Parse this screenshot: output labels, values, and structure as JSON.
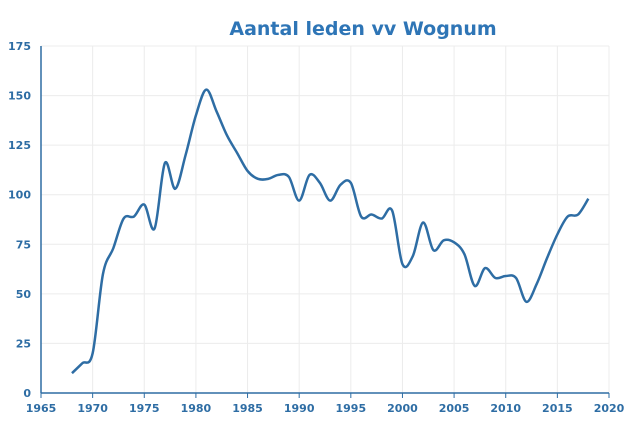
{
  "chart_data": {
    "type": "line",
    "title": "Aantal leden vv Wognum",
    "xlabel": "",
    "ylabel": "",
    "xlim": [
      1965,
      2020
    ],
    "ylim": [
      0,
      175
    ],
    "xticks": [
      1965,
      1970,
      1975,
      1980,
      1985,
      1990,
      1995,
      2000,
      2005,
      2010,
      2015,
      2020
    ],
    "yticks": [
      0,
      25,
      50,
      75,
      100,
      125,
      150,
      175
    ],
    "grid": true,
    "color": "#2e6da4",
    "series": [
      {
        "name": "Aantal leden",
        "x": [
          1968,
          1969,
          1970,
          1971,
          1972,
          1973,
          1974,
          1975,
          1976,
          1977,
          1978,
          1979,
          1980,
          1981,
          1982,
          1983,
          1984,
          1985,
          1986,
          1987,
          1988,
          1989,
          1990,
          1991,
          1992,
          1993,
          1994,
          1995,
          1996,
          1997,
          1998,
          1999,
          2000,
          2001,
          2002,
          2003,
          2004,
          2005,
          2006,
          2007,
          2008,
          2009,
          2010,
          2011,
          2012,
          2013,
          2014,
          2015,
          2016,
          2017,
          2018
        ],
        "values": [
          10,
          15,
          20,
          60,
          73,
          88,
          89,
          95,
          83,
          116,
          103,
          120,
          140,
          153,
          142,
          130,
          121,
          112,
          108,
          108,
          110,
          109,
          97,
          110,
          106,
          97,
          105,
          106,
          89,
          90,
          88,
          92,
          65,
          69,
          86,
          72,
          77,
          76,
          70,
          54,
          63,
          58,
          59,
          58,
          46,
          55,
          68,
          80,
          89,
          90,
          98
        ]
      }
    ]
  }
}
